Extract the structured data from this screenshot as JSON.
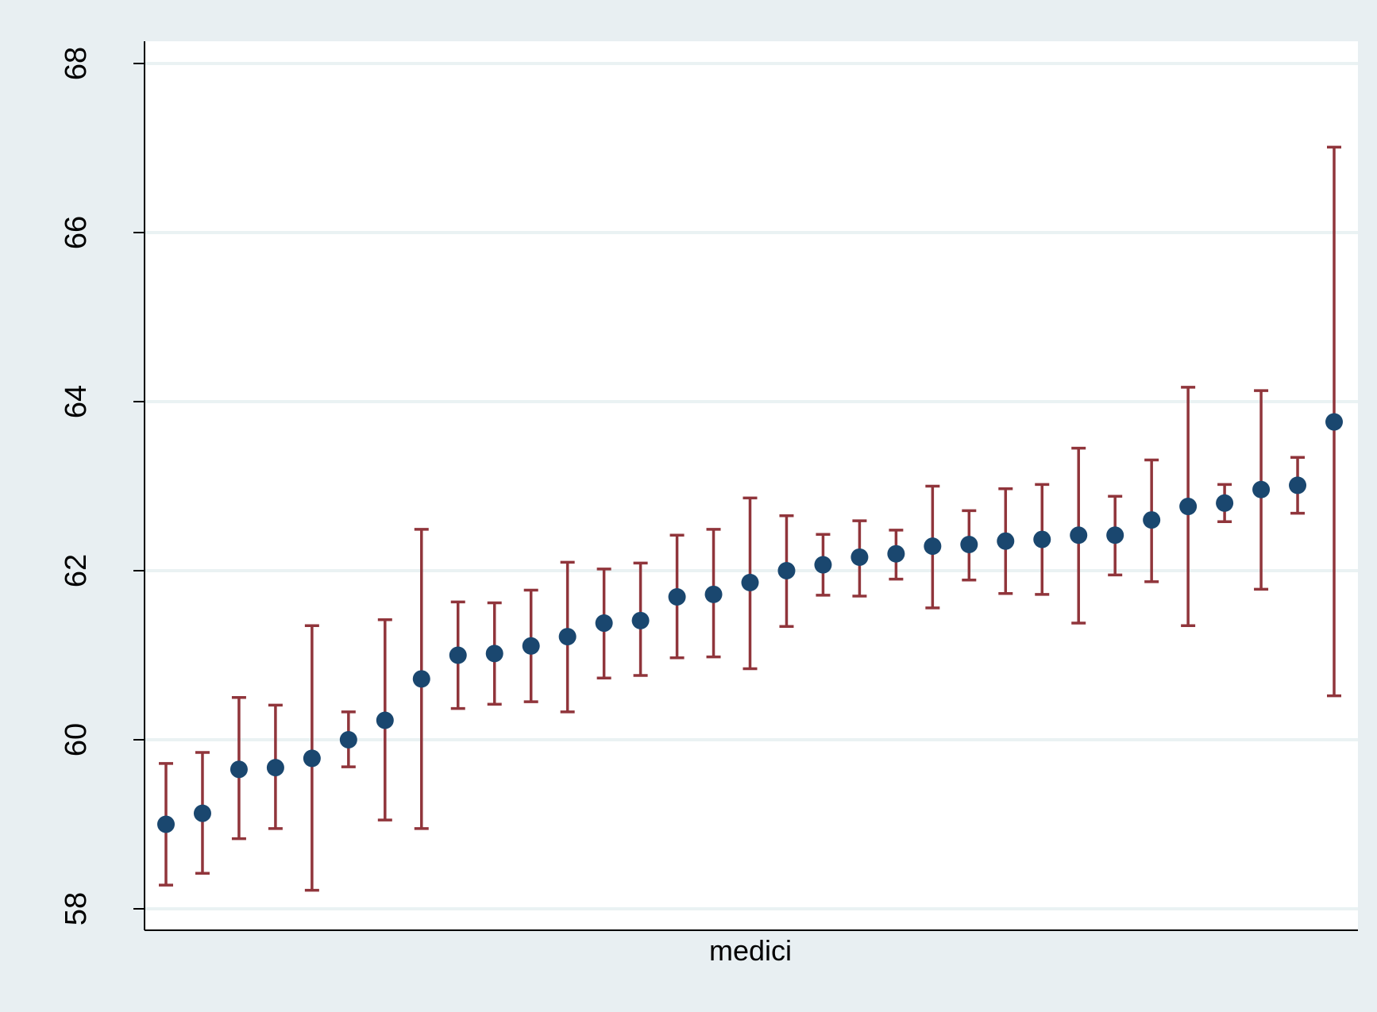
{
  "chart_data": {
    "type": "scatter",
    "title": "",
    "xlabel": "medici",
    "ylabel": "",
    "ylim": [
      58,
      68
    ],
    "yticks": [
      58,
      60,
      62,
      64,
      66,
      68
    ],
    "grid": true,
    "legend": "none",
    "series": [
      {
        "points": [
          59.0,
          59.13,
          59.65,
          59.67,
          59.78,
          60.0,
          60.23,
          60.72,
          61.0,
          61.02,
          61.11,
          61.22,
          61.38,
          61.41,
          61.69,
          61.72,
          61.86,
          62.0,
          62.07,
          62.16,
          62.2,
          62.29,
          62.31,
          62.35,
          62.37,
          62.42,
          62.42,
          62.6,
          62.76,
          62.8,
          62.96,
          63.01,
          63.76
        ],
        "lower": [
          58.28,
          58.42,
          58.83,
          58.95,
          58.22,
          59.68,
          59.05,
          58.95,
          60.37,
          60.42,
          60.45,
          60.33,
          60.73,
          60.76,
          60.97,
          60.98,
          60.84,
          61.34,
          61.71,
          61.7,
          61.9,
          61.56,
          61.89,
          61.73,
          61.72,
          61.38,
          61.95,
          61.87,
          61.35,
          62.58,
          61.78,
          62.68,
          60.52
        ],
        "upper": [
          59.72,
          59.85,
          60.5,
          60.41,
          61.35,
          60.33,
          61.42,
          62.49,
          61.63,
          61.62,
          61.77,
          62.1,
          62.02,
          62.09,
          62.42,
          62.49,
          62.86,
          62.65,
          62.43,
          62.59,
          62.48,
          63.0,
          62.71,
          62.97,
          63.02,
          63.45,
          62.88,
          63.31,
          64.17,
          63.02,
          64.13,
          63.34,
          67.01
        ]
      }
    ],
    "colors": {
      "point": "#1a476f",
      "errorbar": "#90353b",
      "plot_background": "#ffffff",
      "outer_background": "#e8eff2",
      "gridline": "#eaf2f3"
    }
  }
}
